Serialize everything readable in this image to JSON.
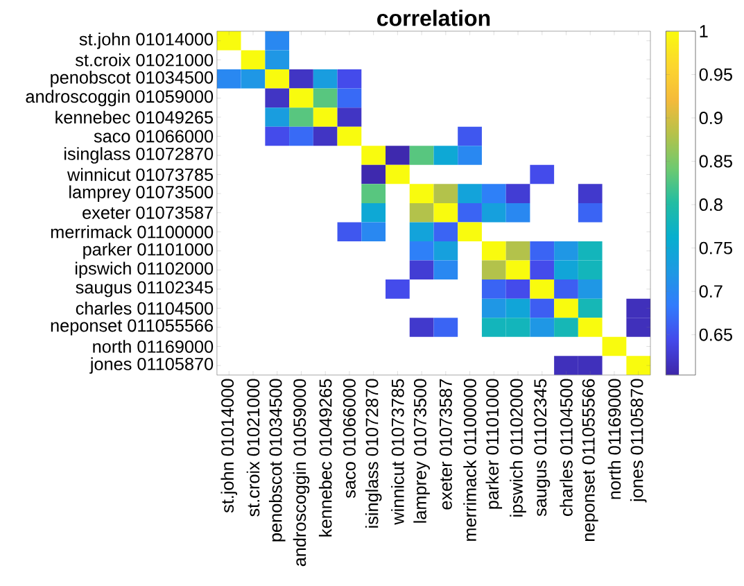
{
  "chart_data": {
    "type": "heatmap",
    "title": "correlation",
    "categories": [
      "st.john 01014000",
      "st.croix 01021000",
      "penobscot 01034500",
      "androscoggin 01059000",
      "kennebec 01049265",
      "saco 01066000",
      "isinglass 01072870",
      "winnicut 01073785",
      "lamprey 01073500",
      "exeter 01073587",
      "merrimack 01100000",
      "parker 01101000",
      "ipswich 01102000",
      "saugus 01102345",
      "charles 01104500",
      "neponset 011055566",
      "north 01169000",
      "jones 01105870"
    ],
    "y_categories": [
      "st.john 01014000",
      "st.croix 01021000",
      "penobscot 01034500",
      "androscoggin 01059000",
      "kennebec 01049265",
      "saco 01066000",
      "isinglass 01072870",
      "winnicut 01073785",
      "lamprey 01073500",
      "exeter 01073587",
      "merrimack 01100000",
      "parker 01101000",
      "ipswich 01102000",
      "saugus 01102345",
      "charles 01104500",
      "neponset 011055566",
      "north 01169000",
      "jones 01105870"
    ],
    "cells": [
      [
        1,
        null,
        0.7,
        null,
        null,
        null,
        null,
        null,
        null,
        null,
        null,
        null,
        null,
        null,
        null,
        null,
        null,
        null
      ],
      [
        null,
        1,
        0.72,
        null,
        null,
        null,
        null,
        null,
        null,
        null,
        null,
        null,
        null,
        null,
        null,
        null,
        null,
        null
      ],
      [
        0.7,
        0.72,
        1,
        0.62,
        0.73,
        0.645,
        null,
        null,
        null,
        null,
        null,
        null,
        null,
        null,
        null,
        null,
        null,
        null
      ],
      [
        null,
        null,
        0.62,
        1,
        0.83,
        0.67,
        null,
        null,
        null,
        null,
        null,
        null,
        null,
        null,
        null,
        null,
        null,
        null
      ],
      [
        null,
        null,
        0.73,
        0.83,
        1,
        0.62,
        null,
        null,
        null,
        null,
        null,
        null,
        null,
        null,
        null,
        null,
        null,
        null
      ],
      [
        null,
        null,
        0.645,
        0.67,
        0.62,
        1,
        null,
        null,
        null,
        null,
        0.655,
        null,
        null,
        null,
        null,
        null,
        null,
        null
      ],
      [
        null,
        null,
        null,
        null,
        null,
        null,
        1,
        0.607,
        0.83,
        0.75,
        0.7,
        null,
        null,
        null,
        null,
        null,
        null,
        null
      ],
      [
        null,
        null,
        null,
        null,
        null,
        null,
        0.607,
        1,
        null,
        null,
        null,
        null,
        null,
        0.645,
        null,
        null,
        null,
        null
      ],
      [
        null,
        null,
        null,
        null,
        null,
        null,
        0.83,
        null,
        1,
        0.88,
        0.74,
        0.69,
        0.63,
        null,
        null,
        0.625,
        null,
        null
      ],
      [
        null,
        null,
        null,
        null,
        null,
        null,
        0.75,
        null,
        0.88,
        1,
        0.665,
        0.735,
        0.7,
        null,
        null,
        0.665,
        null,
        null
      ],
      [
        null,
        null,
        null,
        null,
        null,
        0.655,
        0.7,
        null,
        0.74,
        0.665,
        1,
        null,
        null,
        null,
        null,
        null,
        null,
        null
      ],
      [
        null,
        null,
        null,
        null,
        null,
        null,
        null,
        null,
        0.69,
        0.735,
        null,
        1,
        0.88,
        0.665,
        0.72,
        0.78,
        null,
        null
      ],
      [
        null,
        null,
        null,
        null,
        null,
        null,
        null,
        null,
        0.63,
        0.7,
        null,
        0.88,
        1,
        0.645,
        0.745,
        0.78,
        null,
        null
      ],
      [
        null,
        null,
        null,
        null,
        null,
        null,
        null,
        0.645,
        null,
        null,
        null,
        0.665,
        0.645,
        1,
        0.66,
        0.72,
        null,
        null
      ],
      [
        null,
        null,
        null,
        null,
        null,
        null,
        null,
        null,
        null,
        null,
        null,
        0.72,
        0.745,
        0.66,
        1,
        0.785,
        null,
        0.615
      ],
      [
        null,
        null,
        null,
        null,
        null,
        null,
        null,
        null,
        0.625,
        0.665,
        null,
        0.78,
        0.78,
        0.72,
        0.785,
        1,
        null,
        0.615
      ],
      [
        null,
        null,
        null,
        null,
        null,
        null,
        null,
        null,
        null,
        null,
        null,
        null,
        null,
        null,
        null,
        null,
        1,
        null
      ],
      [
        null,
        null,
        null,
        null,
        null,
        null,
        null,
        null,
        null,
        null,
        null,
        null,
        null,
        null,
        0.615,
        0.615,
        null,
        1
      ]
    ],
    "clim": [
      0.6035,
      1
    ],
    "cticks": [
      0.65,
      0.7,
      0.75,
      0.8,
      0.85,
      0.9,
      0.95,
      1
    ]
  }
}
